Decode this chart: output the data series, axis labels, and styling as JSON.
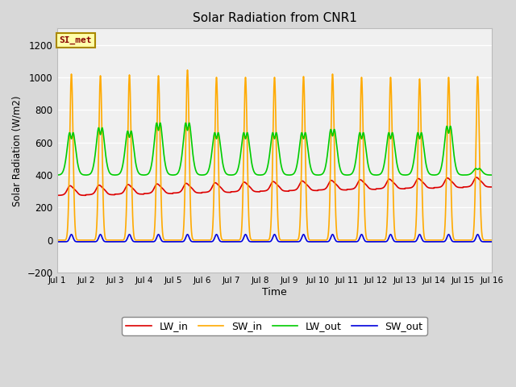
{
  "title": "Solar Radiation from CNR1",
  "xlabel": "Time",
  "ylabel": "Solar Radiation (W/m2)",
  "ylim": [
    -200,
    1300
  ],
  "yticks": [
    -200,
    0,
    200,
    400,
    600,
    800,
    1000,
    1200
  ],
  "xlim": [
    1,
    16
  ],
  "num_days": 15,
  "fig_facecolor": "#d8d8d8",
  "ax_facecolor": "#f0f0f0",
  "legend_labels": [
    "LW_in",
    "SW_in",
    "LW_out",
    "SW_out"
  ],
  "legend_colors": [
    "#dd0000",
    "#ffaa00",
    "#00cc00",
    "#0000dd"
  ],
  "annotation_text": "SI_met",
  "annotation_bg": "#ffffaa",
  "annotation_border": "#aa8800",
  "annotation_text_color": "#880000",
  "line_width": 1.2,
  "sw_in_peaks": [
    1020,
    1010,
    1015,
    1010,
    1045,
    1000,
    1000,
    1000,
    1005,
    1020,
    1000,
    1000,
    990,
    1000,
    1005
  ],
  "lw_out_peaks": [
    660,
    690,
    670,
    720,
    720,
    660,
    660,
    660,
    660,
    680,
    660,
    660,
    660,
    700,
    440
  ],
  "lw_in_base": 275,
  "lw_in_day_boost": 60,
  "sw_out_night": -10,
  "sw_out_day_peak": 35,
  "lw_out_night": 400
}
